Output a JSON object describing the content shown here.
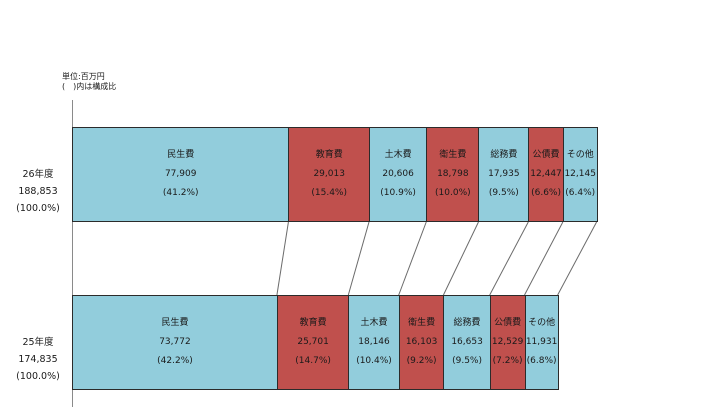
{
  "note": {
    "line1": "単位:百万円",
    "line2": "(　)内は構成比"
  },
  "colors": {
    "light": "#92cddc",
    "dark": "#c0504d",
    "border": "#2b2b2b"
  },
  "chart_data": {
    "type": "bar",
    "stacked": true,
    "orientation": "horizontal",
    "categories": [
      "民生費",
      "教育費",
      "土木費",
      "衛生費",
      "総務費",
      "公債費",
      "その他"
    ],
    "rows": [
      {
        "year": "26年度",
        "total": "188,853",
        "total_pct": "(100.0%)",
        "segments": [
          {
            "name": "民生費",
            "value": 77909,
            "label": "77,909",
            "pct": "(41.2%)",
            "color": "light"
          },
          {
            "name": "教育費",
            "value": 29013,
            "label": "29,013",
            "pct": "(15.4%)",
            "color": "dark"
          },
          {
            "name": "土木費",
            "value": 20606,
            "label": "20,606",
            "pct": "(10.9%)",
            "color": "light"
          },
          {
            "name": "衛生費",
            "value": 18798,
            "label": "18,798",
            "pct": "(10.0%)",
            "color": "dark"
          },
          {
            "name": "総務費",
            "value": 17935,
            "label": "17,935",
            "pct": "(9.5%)",
            "color": "light"
          },
          {
            "name": "公債費",
            "value": 12447,
            "label": "12,447",
            "pct": "(6.6%)",
            "color": "dark"
          },
          {
            "name": "その他",
            "value": 12145,
            "label": "12,145",
            "pct": "(6.4%)",
            "color": "light"
          }
        ]
      },
      {
        "year": "25年度",
        "total": "174,835",
        "total_pct": "(100.0%)",
        "segments": [
          {
            "name": "民生費",
            "value": 73772,
            "label": "73,772",
            "pct": "(42.2%)",
            "color": "light"
          },
          {
            "name": "教育費",
            "value": 25701,
            "label": "25,701",
            "pct": "(14.7%)",
            "color": "dark"
          },
          {
            "name": "土木費",
            "value": 18146,
            "label": "18,146",
            "pct": "(10.4%)",
            "color": "light"
          },
          {
            "name": "衛生費",
            "value": 16103,
            "label": "16,103",
            "pct": "(9.2%)",
            "color": "dark"
          },
          {
            "name": "総務費",
            "value": 16653,
            "label": "16,653",
            "pct": "(9.5%)",
            "color": "light"
          },
          {
            "name": "公債費",
            "value": 12529,
            "label": "12,529",
            "pct": "(7.2%)",
            "color": "dark"
          },
          {
            "name": "その他",
            "value": 11931,
            "label": "11,931",
            "pct": "(6.8%)",
            "color": "light"
          }
        ]
      }
    ]
  }
}
